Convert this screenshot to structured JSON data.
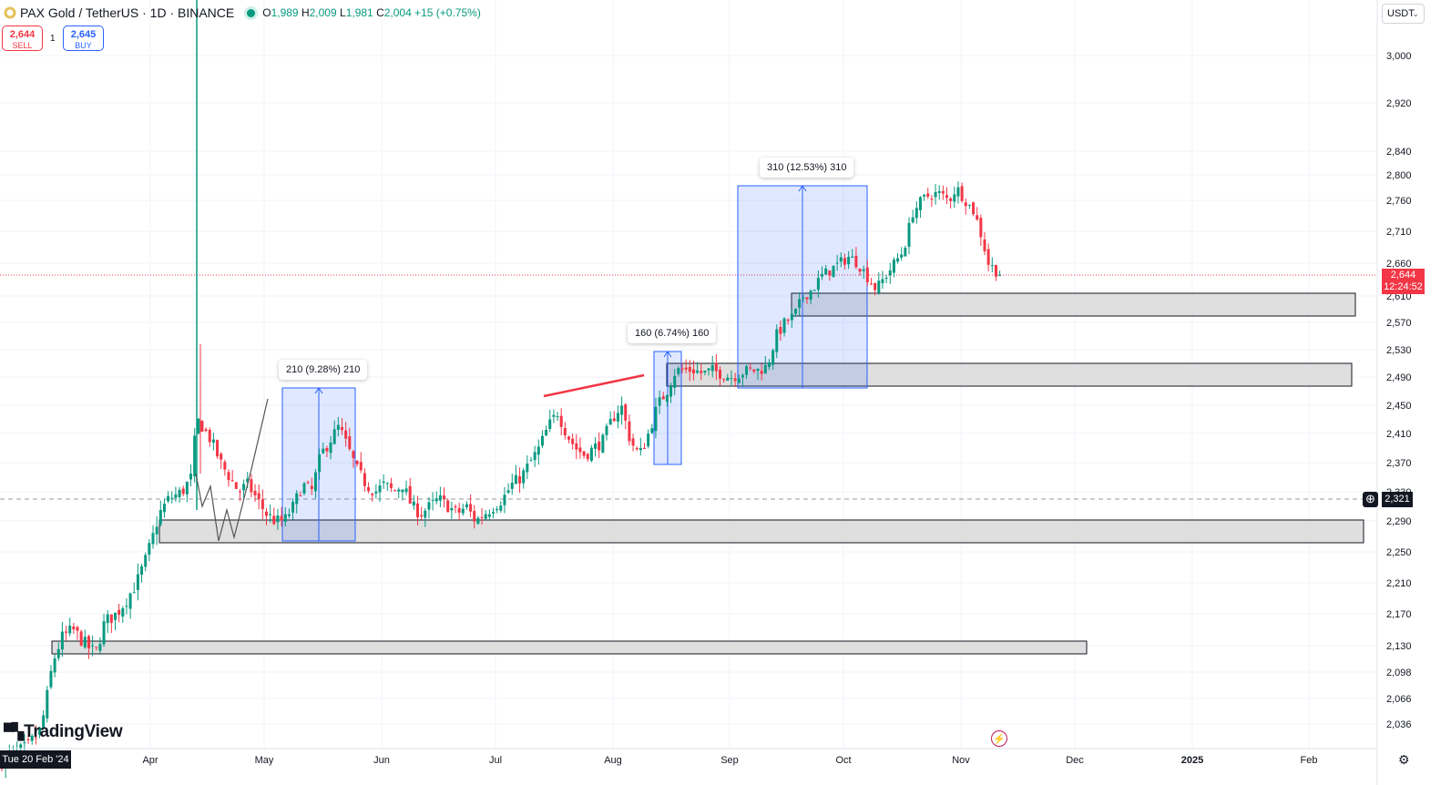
{
  "header": {
    "symbol": "PAX Gold / TetherUS · 1D · BINANCE",
    "o_label": "O",
    "o_value": "1,989",
    "h_label": "H",
    "h_value": "2,009",
    "l_label": "L",
    "l_value": "1,981",
    "c_label": "C",
    "c_value": "2,004",
    "change": "+15 (+0.75%)"
  },
  "trade": {
    "sell_price": "2,644",
    "sell_label": "SELL",
    "quantity": "1",
    "buy_price": "2,645",
    "buy_label": "BUY"
  },
  "currency": "USDT",
  "price_label": {
    "price": "2,644",
    "countdown": "12:24:52"
  },
  "crosshair": {
    "price": "2,321",
    "date": "Tue 20 Feb '24"
  },
  "branding": "TradingView",
  "measurements": [
    {
      "label": "210 (9.28%) 210"
    },
    {
      "label": "160 (6.74%) 160"
    },
    {
      "label": "310 (12.53%) 310"
    }
  ],
  "chart_data": {
    "type": "candlestick",
    "current_price": 2644,
    "crosshair_price": 2321,
    "yaxis_ticks": [
      "3,000",
      "2,920",
      "2,840",
      "2,800",
      "2,760",
      "2,710",
      "2,660",
      "2,610",
      "2,570",
      "2,530",
      "2,490",
      "2,450",
      "2,410",
      "2,370",
      "2,330",
      "2,290",
      "2,250",
      "2,210",
      "2,170",
      "2,130",
      "2,098",
      "2,066",
      "2,036"
    ],
    "xaxis_ticks": [
      "Apr",
      "May",
      "Jun",
      "Jul",
      "Aug",
      "Sep",
      "Oct",
      "Nov",
      "Dec",
      "2025",
      "Feb"
    ],
    "colors": {
      "up": "#089981",
      "down": "#f23645",
      "zone": "#d9d9d9",
      "measure": "#2962ff"
    }
  }
}
